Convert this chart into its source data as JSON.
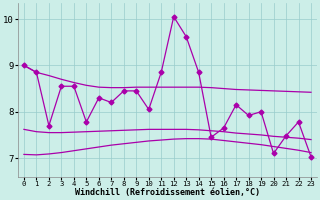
{
  "background_color": "#cceee8",
  "line_color": "#aa00aa",
  "grid_color": "#99cccc",
  "xlabel": "Windchill (Refroidissement éolien,°C)",
  "xlim_min": -0.5,
  "xlim_max": 23.5,
  "ylim_min": 6.6,
  "ylim_max": 10.35,
  "yticks": [
    7,
    8,
    9,
    10
  ],
  "xticks": [
    0,
    1,
    2,
    3,
    4,
    5,
    6,
    7,
    8,
    9,
    10,
    11,
    12,
    13,
    14,
    15,
    16,
    17,
    18,
    19,
    20,
    21,
    22,
    23
  ],
  "line_upper_x": [
    0,
    1,
    2,
    3,
    4,
    5,
    6,
    7,
    8,
    9,
    10,
    11,
    12,
    13,
    14,
    15,
    16,
    17,
    18,
    19,
    20,
    21,
    22,
    23
  ],
  "line_upper_y": [
    9.0,
    8.85,
    8.78,
    8.7,
    8.63,
    8.57,
    8.53,
    8.52,
    8.52,
    8.53,
    8.53,
    8.53,
    8.53,
    8.53,
    8.53,
    8.52,
    8.5,
    8.48,
    8.47,
    8.46,
    8.45,
    8.44,
    8.43,
    8.42
  ],
  "line_mid_upper_x": [
    0,
    1,
    2,
    3,
    4,
    5,
    6,
    7,
    8,
    9,
    10,
    11,
    12,
    13,
    14,
    15,
    16,
    17,
    18,
    19,
    20,
    21,
    22,
    23
  ],
  "line_mid_upper_y": [
    7.62,
    7.57,
    7.55,
    7.55,
    7.56,
    7.57,
    7.58,
    7.59,
    7.6,
    7.61,
    7.62,
    7.62,
    7.62,
    7.62,
    7.61,
    7.59,
    7.57,
    7.54,
    7.52,
    7.5,
    7.47,
    7.45,
    7.43,
    7.4
  ],
  "line_mid_lower_x": [
    0,
    1,
    2,
    3,
    4,
    5,
    6,
    7,
    8,
    9,
    10,
    11,
    12,
    13,
    14,
    15,
    16,
    17,
    18,
    19,
    20,
    21,
    22,
    23
  ],
  "line_mid_lower_y": [
    7.08,
    7.07,
    7.09,
    7.12,
    7.16,
    7.2,
    7.24,
    7.28,
    7.31,
    7.34,
    7.37,
    7.39,
    7.41,
    7.42,
    7.42,
    7.41,
    7.38,
    7.35,
    7.32,
    7.29,
    7.25,
    7.21,
    7.17,
    7.12
  ],
  "line_jagged_x": [
    0,
    1,
    2,
    3,
    4,
    5,
    6,
    7,
    8,
    9,
    10,
    11,
    12,
    13,
    14,
    15,
    16,
    17,
    18,
    19,
    20,
    21,
    22,
    23
  ],
  "line_jagged_y": [
    9.0,
    8.85,
    7.7,
    8.55,
    8.55,
    7.78,
    8.3,
    8.2,
    8.45,
    8.45,
    8.05,
    8.85,
    10.05,
    9.62,
    8.85,
    7.45,
    7.65,
    8.15,
    7.92,
    8.0,
    7.1,
    7.48,
    7.78,
    7.03
  ]
}
